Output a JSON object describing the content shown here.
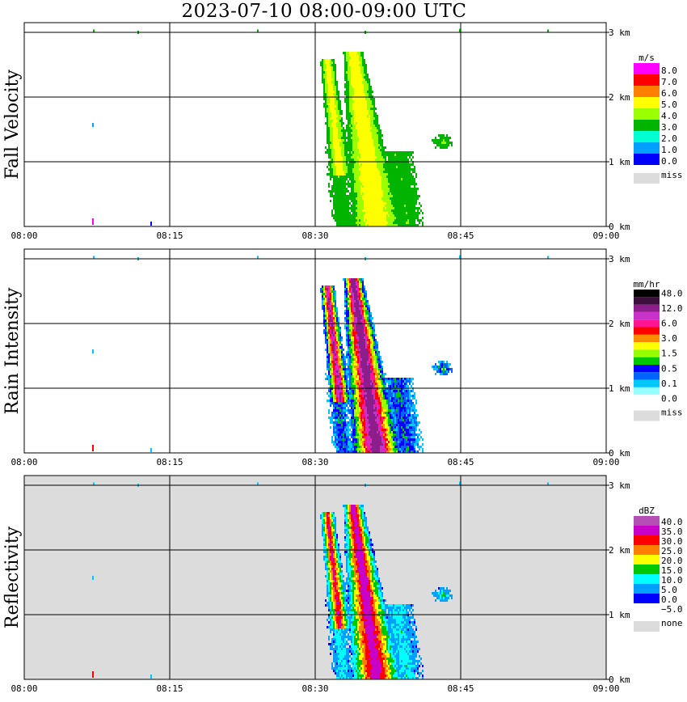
{
  "title": "2023-07-10   08:00-09:00 UTC",
  "time_ticks": [
    "08:00",
    "08:15",
    "08:30",
    "08:45",
    "09:00"
  ],
  "height_ticks": [
    "0 km",
    "1 km",
    "2 km",
    "3 km"
  ],
  "chart_data": [
    {
      "type": "heatmap",
      "ylabel": "Fall Velocity",
      "xlabel": "",
      "xlim": [
        "08:00",
        "09:00"
      ],
      "ylim_km": [
        0,
        3.2
      ],
      "grid": true,
      "background": "#ffffff",
      "colorbar": {
        "unit": "m/s",
        "labels": [
          "8.0",
          "7.0",
          "6.0",
          "5.0",
          "4.0",
          "3.0",
          "2.0",
          "1.0",
          "0.0"
        ],
        "colors": [
          "#ff00ff",
          "#ff0000",
          "#ff7f00",
          "#ffff00",
          "#9aff00",
          "#00b400",
          "#00ffd2",
          "#00a0ff",
          "#0000ff"
        ],
        "missing_label": "miss",
        "missing_color": "#dcdcdc"
      },
      "echo": {
        "time_range": [
          "08:30",
          "08:42"
        ],
        "top_km": 2.7,
        "core_value_range": [
          "3.0",
          "5.0"
        ]
      }
    },
    {
      "type": "heatmap",
      "ylabel": "Rain Intensity",
      "xlabel": "",
      "xlim": [
        "08:00",
        "09:00"
      ],
      "ylim_km": [
        0,
        3.2
      ],
      "grid": true,
      "background": "#ffffff",
      "colorbar": {
        "unit": "mm/hr",
        "labels": [
          "48.0",
          "",
          "12.0",
          "",
          "6.0",
          "",
          "3.0",
          "",
          "1.5",
          "",
          "0.5",
          "",
          "0.1",
          "0.0"
        ],
        "colors": [
          "#000000",
          "#3c0f3c",
          "#8c1e8c",
          "#c832c8",
          "#ff1493",
          "#ff0000",
          "#ff8c00",
          "#ffff00",
          "#96ff00",
          "#00c800",
          "#0000ff",
          "#0064ff",
          "#00c8ff",
          "#96ffff",
          "#ffffff"
        ],
        "missing_label": "miss",
        "missing_color": "#dcdcdc"
      },
      "echo": {
        "time_range": [
          "08:30",
          "08:42"
        ],
        "top_km": 2.7,
        "core_value_range": [
          "6.0",
          "12.0"
        ]
      }
    },
    {
      "type": "heatmap",
      "ylabel": "Reflectivity",
      "xlabel": "",
      "xlim": [
        "08:00",
        "09:00"
      ],
      "ylim_km": [
        0,
        3.2
      ],
      "grid": true,
      "background": "#dcdcdc",
      "colorbar": {
        "unit": "dBZ",
        "labels": [
          "40.0",
          "35.0",
          "30.0",
          "25.0",
          "20.0",
          "15.0",
          "10.0",
          "5.0",
          "0.0",
          "−5.0"
        ],
        "colors": [
          "#b450b4",
          "#c800c8",
          "#ff0000",
          "#ff7f00",
          "#ffff00",
          "#00c800",
          "#00ffff",
          "#00a0ff",
          "#0000ff",
          "#ffffff"
        ],
        "missing_label": "none",
        "missing_color": "#dcdcdc"
      },
      "echo": {
        "time_range": [
          "08:30",
          "08:42"
        ],
        "top_km": 2.7,
        "core_value_range": [
          "25.0",
          "35.0"
        ]
      }
    }
  ]
}
